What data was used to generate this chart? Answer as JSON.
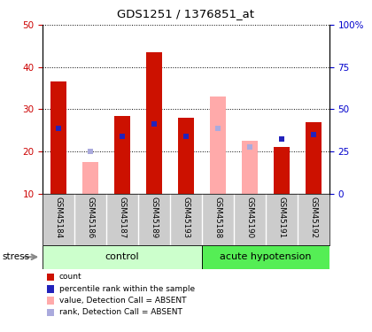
{
  "title": "GDS1251 / 1376851_at",
  "samples": [
    "GSM45184",
    "GSM45186",
    "GSM45187",
    "GSM45189",
    "GSM45193",
    "GSM45188",
    "GSM45190",
    "GSM45191",
    "GSM45192"
  ],
  "absent": [
    false,
    true,
    false,
    false,
    false,
    true,
    true,
    false,
    false
  ],
  "red_bar_heights": [
    36.5,
    0,
    28.5,
    43.5,
    28.0,
    0,
    0,
    21.0,
    27.0
  ],
  "pink_bar_heights": [
    0,
    17.5,
    0,
    0,
    0,
    33.0,
    22.5,
    0,
    0
  ],
  "blue_markers": [
    25.5,
    0,
    23.5,
    26.5,
    23.5,
    0,
    0,
    23.0,
    24.0
  ],
  "light_blue_markers": [
    0,
    20.0,
    0,
    0,
    0,
    25.5,
    21.0,
    0,
    0
  ],
  "ylim": [
    10,
    50
  ],
  "yticks_left": [
    10,
    20,
    30,
    40,
    50
  ],
  "yticks_right": [
    0,
    25,
    50,
    75,
    100
  ],
  "left_tick_color": "#cc0000",
  "right_tick_color": "#0000cc",
  "bar_width": 0.5,
  "red_color": "#cc1100",
  "pink_color": "#ffaaaa",
  "blue_color": "#2222bb",
  "light_blue_color": "#aaaadd",
  "control_color": "#ccffcc",
  "acute_color": "#55ee55",
  "group_label_control": "control",
  "group_label_acute": "acute hypotension",
  "stress_label": "stress",
  "legend_items": [
    "count",
    "percentile rank within the sample",
    "value, Detection Call = ABSENT",
    "rank, Detection Call = ABSENT"
  ],
  "legend_colors": [
    "#cc1100",
    "#2222bb",
    "#ffaaaa",
    "#aaaadd"
  ],
  "tick_label_area_color": "#cccccc",
  "plot_bg": "#ffffff",
  "n_control": 5,
  "n_acute": 4
}
